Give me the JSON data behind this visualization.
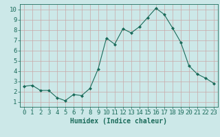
{
  "x": [
    0,
    1,
    2,
    3,
    4,
    5,
    6,
    7,
    8,
    9,
    10,
    11,
    12,
    13,
    14,
    15,
    16,
    17,
    18,
    19,
    20,
    21,
    22,
    23
  ],
  "y": [
    2.5,
    2.6,
    2.1,
    2.1,
    1.4,
    1.1,
    1.7,
    1.6,
    2.3,
    4.2,
    7.2,
    6.6,
    8.1,
    7.7,
    8.3,
    9.2,
    10.1,
    9.5,
    8.2,
    6.8,
    4.5,
    3.7,
    3.3,
    2.8
  ],
  "line_color": "#1a6b5a",
  "marker": "D",
  "marker_size": 2,
  "bg_color": "#cce8e8",
  "grid_color_major": "#c8a8a8",
  "grid_color_minor": "#c8a8a8",
  "xlabel": "Humidex (Indice chaleur)",
  "xlim": [
    -0.5,
    23.5
  ],
  "ylim": [
    0.5,
    10.5
  ],
  "xticks": [
    0,
    1,
    2,
    3,
    4,
    5,
    6,
    7,
    8,
    9,
    10,
    11,
    12,
    13,
    14,
    15,
    16,
    17,
    18,
    19,
    20,
    21,
    22,
    23
  ],
  "yticks": [
    1,
    2,
    3,
    4,
    5,
    6,
    7,
    8,
    9,
    10
  ],
  "xlabel_fontsize": 7,
  "tick_fontsize": 6.5,
  "label_color": "#1a6b5a"
}
